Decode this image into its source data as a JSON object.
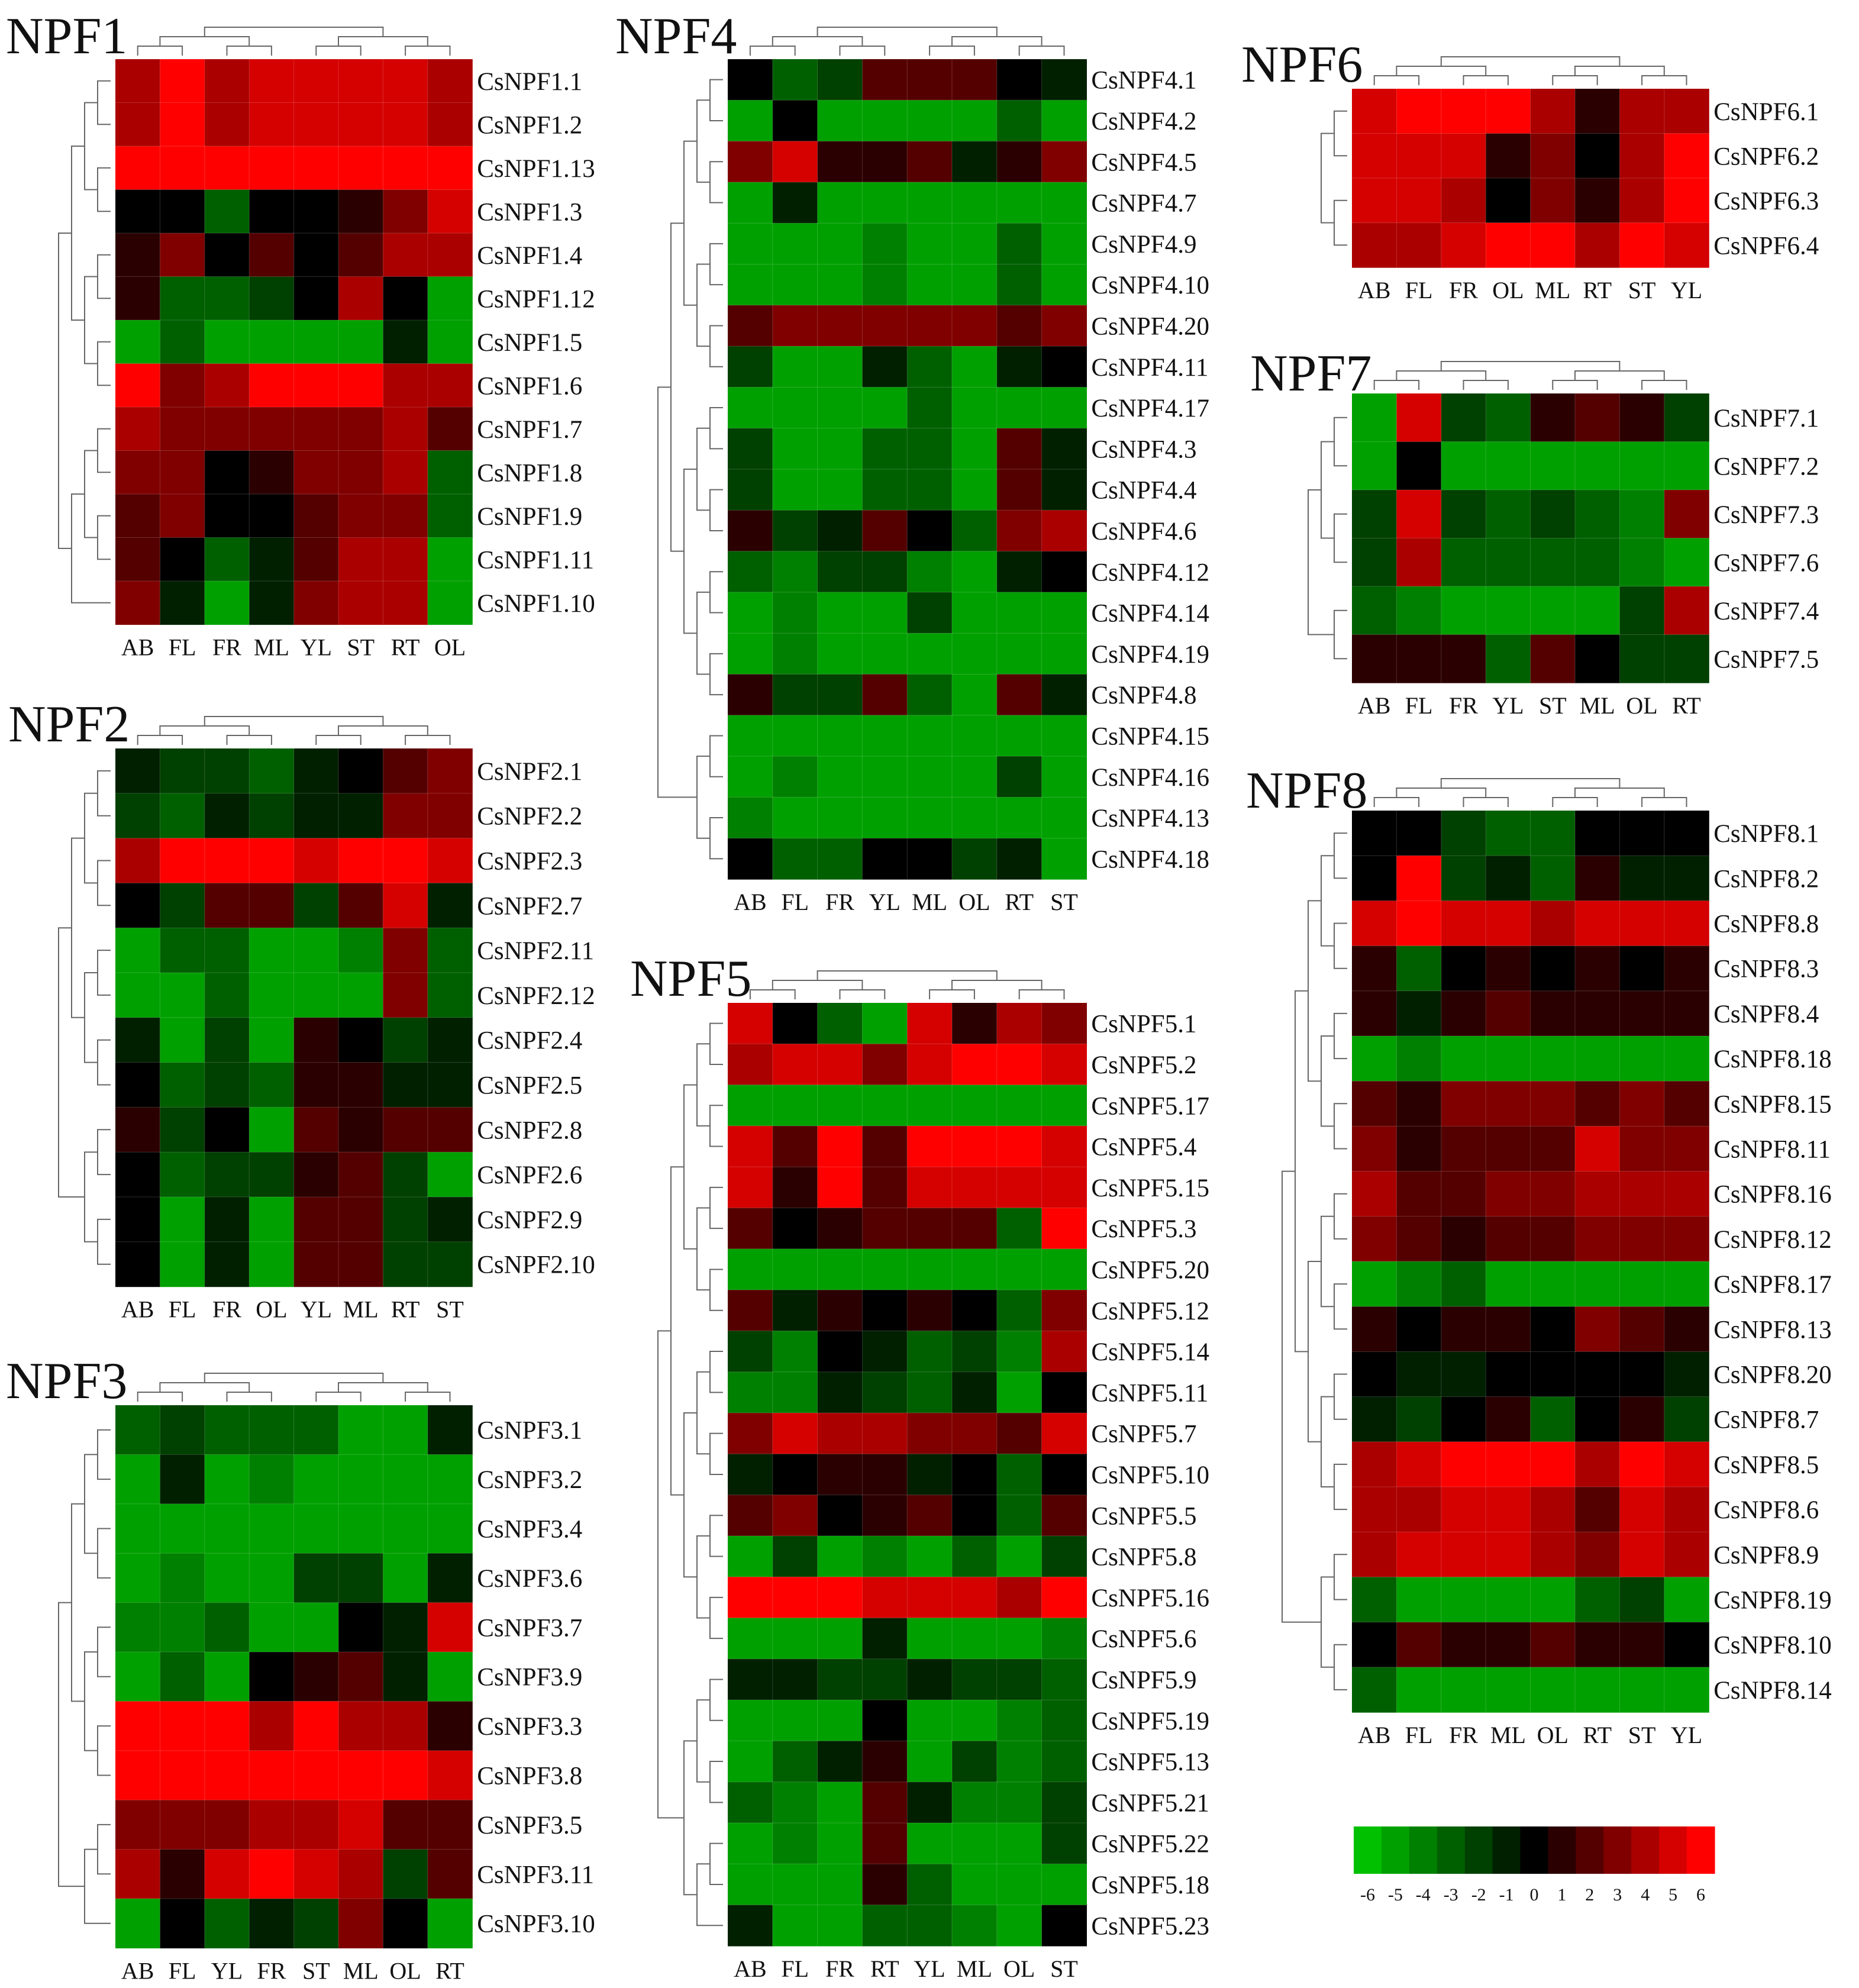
{
  "chart_data": [
    {
      "type": "heatmap",
      "title": "NPF1",
      "columns": [
        "AB",
        "FL",
        "FR",
        "ML",
        "YL",
        "ST",
        "RT",
        "OL"
      ],
      "rows": [
        "CsNPF1.1",
        "CsNPF1.2",
        "CsNPF1.13",
        "CsNPF1.3",
        "CsNPF1.4",
        "CsNPF1.12",
        "CsNPF1.5",
        "CsNPF1.6",
        "CsNPF1.7",
        "CsNPF1.8",
        "CsNPF1.9",
        "CsNPF1.11",
        "CsNPF1.10"
      ],
      "values": [
        [
          4,
          6,
          4,
          5,
          5,
          5,
          5,
          4
        ],
        [
          4,
          6,
          4,
          5,
          5,
          5,
          5,
          4
        ],
        [
          6,
          6,
          6,
          6,
          6,
          6,
          6,
          6
        ],
        [
          0,
          0,
          -3,
          0,
          0,
          1,
          3,
          5
        ],
        [
          1,
          3,
          0,
          2,
          0,
          2,
          4,
          4
        ],
        [
          1,
          -3,
          -3,
          -2,
          0,
          4,
          0,
          -5
        ],
        [
          -5,
          -3,
          -5,
          -5,
          -5,
          -5,
          -1,
          -5
        ],
        [
          6,
          3,
          4,
          6,
          6,
          6,
          4,
          4
        ],
        [
          4,
          3,
          3,
          3,
          3,
          3,
          4,
          2
        ],
        [
          3,
          3,
          0,
          1,
          3,
          3,
          4,
          -3
        ],
        [
          2,
          3,
          0,
          0,
          2,
          3,
          3,
          -3
        ],
        [
          2,
          0,
          -3,
          -1,
          2,
          4,
          4,
          -5
        ],
        [
          3,
          -1,
          -5,
          -1,
          3,
          4,
          4,
          -5
        ]
      ]
    },
    {
      "type": "heatmap",
      "title": "NPF2",
      "columns": [
        "AB",
        "FL",
        "FR",
        "OL",
        "YL",
        "ML",
        "RT",
        "ST"
      ],
      "rows": [
        "CsNPF2.1",
        "CsNPF2.2",
        "CsNPF2.3",
        "CsNPF2.7",
        "CsNPF2.11",
        "CsNPF2.12",
        "CsNPF2.4",
        "CsNPF2.5",
        "CsNPF2.8",
        "CsNPF2.6",
        "CsNPF2.9",
        "CsNPF2.10"
      ],
      "values": [
        [
          -1,
          -2,
          -2,
          -3,
          -1,
          0,
          2,
          3
        ],
        [
          -2,
          -3,
          -1,
          -2,
          -1,
          -1,
          3,
          3
        ],
        [
          4,
          6,
          6,
          6,
          5,
          6,
          6,
          5
        ],
        [
          0,
          -2,
          2,
          2,
          -2,
          2,
          5,
          -1
        ],
        [
          -5,
          -3,
          -3,
          -5,
          -5,
          -4,
          3,
          -3
        ],
        [
          -5,
          -5,
          -3,
          -5,
          -5,
          -5,
          3,
          -3
        ],
        [
          -1,
          -5,
          -2,
          -5,
          1,
          0,
          -2,
          -1
        ],
        [
          0,
          -3,
          -2,
          -3,
          1,
          1,
          -1,
          -1
        ],
        [
          1,
          -2,
          0,
          -5,
          2,
          1,
          2,
          2
        ],
        [
          0,
          -3,
          -2,
          -2,
          1,
          2,
          -2,
          -5
        ],
        [
          0,
          -5,
          -1,
          -5,
          2,
          2,
          -2,
          -1
        ],
        [
          0,
          -5,
          -1,
          -5,
          2,
          2,
          -2,
          -2
        ]
      ]
    },
    {
      "type": "heatmap",
      "title": "NPF3",
      "columns": [
        "AB",
        "FL",
        "YL",
        "FR",
        "ST",
        "ML",
        "OL",
        "RT"
      ],
      "rows": [
        "CsNPF3.1",
        "CsNPF3.2",
        "CsNPF3.4",
        "CsNPF3.6",
        "CsNPF3.7",
        "CsNPF3.9",
        "CsNPF3.3",
        "CsNPF3.8",
        "CsNPF3.5",
        "CsNPF3.11",
        "CsNPF3.10"
      ],
      "values": [
        [
          -3,
          -2,
          -3,
          -3,
          -3,
          -5,
          -5,
          -1
        ],
        [
          -5,
          -1,
          -5,
          -4,
          -5,
          -5,
          -5,
          -5
        ],
        [
          -5,
          -5,
          -5,
          -5,
          -5,
          -5,
          -5,
          -5
        ],
        [
          -5,
          -4,
          -5,
          -5,
          -2,
          -2,
          -5,
          -1
        ],
        [
          -4,
          -4,
          -3,
          -5,
          -5,
          0,
          -1,
          5
        ],
        [
          -5,
          -3,
          -5,
          0,
          1,
          2,
          -1,
          -5
        ],
        [
          6,
          6,
          6,
          4,
          6,
          4,
          4,
          1
        ],
        [
          6,
          6,
          6,
          6,
          6,
          6,
          6,
          5
        ],
        [
          3,
          3,
          3,
          4,
          4,
          5,
          2,
          2
        ],
        [
          4,
          1,
          5,
          6,
          5,
          4,
          -2,
          2
        ],
        [
          -5,
          0,
          -3,
          -1,
          -2,
          3,
          0,
          -5
        ]
      ]
    },
    {
      "type": "heatmap",
      "title": "NPF4",
      "columns": [
        "AB",
        "FL",
        "FR",
        "YL",
        "ML",
        "OL",
        "RT",
        "ST"
      ],
      "rows": [
        "CsNPF4.1",
        "CsNPF4.2",
        "CsNPF4.5",
        "CsNPF4.7",
        "CsNPF4.9",
        "CsNPF4.10",
        "CsNPF4.20",
        "CsNPF4.11",
        "CsNPF4.17",
        "CsNPF4.3",
        "CsNPF4.4",
        "CsNPF4.6",
        "CsNPF4.12",
        "CsNPF4.14",
        "CsNPF4.19",
        "CsNPF4.8",
        "CsNPF4.15",
        "CsNPF4.16",
        "CsNPF4.13",
        "CsNPF4.18"
      ],
      "values": [
        [
          0,
          -3,
          -2,
          2,
          2,
          2,
          0,
          -1
        ],
        [
          -5,
          0,
          -5,
          -5,
          -5,
          -5,
          -3,
          -5
        ],
        [
          3,
          5,
          1,
          1,
          2,
          -1,
          1,
          3
        ],
        [
          -5,
          -1,
          -5,
          -5,
          -5,
          -5,
          -5,
          -5
        ],
        [
          -5,
          -5,
          -5,
          -4,
          -5,
          -5,
          -3,
          -5
        ],
        [
          -5,
          -5,
          -5,
          -4,
          -5,
          -5,
          -3,
          -5
        ],
        [
          2,
          3,
          3,
          3,
          3,
          3,
          2,
          3
        ],
        [
          -2,
          -5,
          -5,
          -1,
          -3,
          -5,
          -1,
          0
        ],
        [
          -5,
          -5,
          -5,
          -5,
          -3,
          -5,
          -5,
          -5
        ],
        [
          -2,
          -5,
          -5,
          -3,
          -3,
          -5,
          2,
          -1
        ],
        [
          -2,
          -5,
          -5,
          -3,
          -3,
          -5,
          2,
          -1
        ],
        [
          1,
          -2,
          -1,
          2,
          0,
          -3,
          3,
          4
        ],
        [
          -3,
          -4,
          -2,
          -2,
          -4,
          -5,
          -1,
          0
        ],
        [
          -5,
          -4,
          -5,
          -5,
          -2,
          -5,
          -5,
          -5
        ],
        [
          -5,
          -4,
          -5,
          -5,
          -5,
          -5,
          -5,
          -5
        ],
        [
          1,
          -2,
          -2,
          2,
          -3,
          -5,
          2,
          -1
        ],
        [
          -5,
          -5,
          -5,
          -5,
          -5,
          -5,
          -5,
          -5
        ],
        [
          -5,
          -4,
          -5,
          -5,
          -5,
          -5,
          -2,
          -5
        ],
        [
          -4,
          -5,
          -5,
          -5,
          -5,
          -5,
          -5,
          -5
        ],
        [
          0,
          -3,
          -3,
          0,
          0,
          -2,
          -1,
          -5
        ]
      ]
    },
    {
      "type": "heatmap",
      "title": "NPF5",
      "columns": [
        "AB",
        "FL",
        "FR",
        "RT",
        "YL",
        "ML",
        "OL",
        "ST"
      ],
      "rows": [
        "CsNPF5.1",
        "CsNPF5.2",
        "CsNPF5.17",
        "CsNPF5.4",
        "CsNPF5.15",
        "CsNPF5.3",
        "CsNPF5.20",
        "CsNPF5.12",
        "CsNPF5.14",
        "CsNPF5.11",
        "CsNPF5.7",
        "CsNPF5.10",
        "CsNPF5.5",
        "CsNPF5.8",
        "CsNPF5.16",
        "CsNPF5.6",
        "CsNPF5.9",
        "CsNPF5.19",
        "CsNPF5.13",
        "CsNPF5.21",
        "CsNPF5.22",
        "CsNPF5.18",
        "CsNPF5.23"
      ],
      "values": [
        [
          5,
          0,
          -3,
          -5,
          5,
          1,
          4,
          3
        ],
        [
          4,
          5,
          5,
          3,
          5,
          6,
          6,
          5
        ],
        [
          -5,
          -5,
          -5,
          -5,
          -5,
          -5,
          -5,
          -5
        ],
        [
          5,
          2,
          6,
          2,
          6,
          6,
          6,
          5
        ],
        [
          5,
          1,
          6,
          2,
          5,
          5,
          5,
          5
        ],
        [
          2,
          0,
          1,
          2,
          2,
          2,
          -3,
          6
        ],
        [
          -5,
          -5,
          -5,
          -5,
          -5,
          -5,
          -5,
          -5
        ],
        [
          2,
          -1,
          1,
          0,
          1,
          0,
          -3,
          3
        ],
        [
          -2,
          -4,
          0,
          -1,
          -3,
          -2,
          -4,
          4
        ],
        [
          -4,
          -4,
          -1,
          -2,
          -3,
          -1,
          -5,
          0
        ],
        [
          3,
          5,
          4,
          4,
          3,
          3,
          2,
          5
        ],
        [
          -1,
          0,
          1,
          1,
          -1,
          0,
          -3,
          0
        ],
        [
          2,
          3,
          0,
          1,
          2,
          0,
          -3,
          2
        ],
        [
          -5,
          -2,
          -5,
          -4,
          -5,
          -3,
          -5,
          -2
        ],
        [
          6,
          6,
          6,
          5,
          5,
          5,
          4,
          6
        ],
        [
          -5,
          -5,
          -5,
          -1,
          -5,
          -5,
          -5,
          -4
        ],
        [
          -1,
          -1,
          -2,
          -2,
          -1,
          -2,
          -2,
          -3
        ],
        [
          -5,
          -5,
          -5,
          0,
          -5,
          -5,
          -4,
          -3
        ],
        [
          -5,
          -3,
          -1,
          1,
          -5,
          -2,
          -4,
          -3
        ],
        [
          -3,
          -4,
          -5,
          2,
          -1,
          -4,
          -4,
          -2
        ],
        [
          -5,
          -4,
          -5,
          2,
          -5,
          -5,
          -5,
          -2
        ],
        [
          -5,
          -5,
          -5,
          1,
          -3,
          -5,
          -5,
          -5
        ],
        [
          -1,
          -5,
          -5,
          -3,
          -3,
          -4,
          -5,
          0
        ]
      ]
    },
    {
      "type": "heatmap",
      "title": "NPF6",
      "columns": [
        "AB",
        "FL",
        "FR",
        "OL",
        "ML",
        "RT",
        "ST",
        "YL"
      ],
      "rows": [
        "CsNPF6.1",
        "CsNPF6.2",
        "CsNPF6.3",
        "CsNPF6.4"
      ],
      "values": [
        [
          5,
          6,
          6,
          6,
          4,
          1,
          4,
          4
        ],
        [
          5,
          5,
          5,
          1,
          3,
          0,
          4,
          6
        ],
        [
          5,
          5,
          4,
          0,
          3,
          1,
          4,
          6
        ],
        [
          4,
          4,
          5,
          6,
          6,
          4,
          6,
          5
        ]
      ]
    },
    {
      "type": "heatmap",
      "title": "NPF7",
      "columns": [
        "AB",
        "FL",
        "FR",
        "YL",
        "ST",
        "ML",
        "OL",
        "RT"
      ],
      "rows": [
        "CsNPF7.1",
        "CsNPF7.2",
        "CsNPF7.3",
        "CsNPF7.6",
        "CsNPF7.4",
        "CsNPF7.5"
      ],
      "values": [
        [
          -5,
          5,
          -2,
          -3,
          1,
          2,
          1,
          -2
        ],
        [
          -5,
          0,
          -5,
          -5,
          -5,
          -5,
          -5,
          -5
        ],
        [
          -2,
          5,
          -2,
          -3,
          -2,
          -3,
          -4,
          3
        ],
        [
          -2,
          4,
          -3,
          -3,
          -3,
          -3,
          -4,
          -5
        ],
        [
          -3,
          -4,
          -5,
          -5,
          -5,
          -5,
          -2,
          4
        ],
        [
          1,
          1,
          1,
          -3,
          2,
          0,
          -2,
          -2
        ]
      ]
    },
    {
      "type": "heatmap",
      "title": "NPF8",
      "columns": [
        "AB",
        "FL",
        "FR",
        "ML",
        "OL",
        "RT",
        "ST",
        "YL"
      ],
      "rows": [
        "CsNPF8.1",
        "CsNPF8.2",
        "CsNPF8.8",
        "CsNPF8.3",
        "CsNPF8.4",
        "CsNPF8.18",
        "CsNPF8.15",
        "CsNPF8.11",
        "CsNPF8.16",
        "CsNPF8.12",
        "CsNPF8.17",
        "CsNPF8.13",
        "CsNPF8.20",
        "CsNPF8.7",
        "CsNPF8.5",
        "CsNPF8.6",
        "CsNPF8.9",
        "CsNPF8.19",
        "CsNPF8.10",
        "CsNPF8.14"
      ],
      "values": [
        [
          0,
          0,
          -2,
          -3,
          -3,
          0,
          0,
          0
        ],
        [
          0,
          6,
          -2,
          -1,
          -3,
          1,
          -1,
          -1
        ],
        [
          5,
          6,
          5,
          5,
          4,
          5,
          5,
          5
        ],
        [
          1,
          -3,
          0,
          1,
          0,
          1,
          0,
          1
        ],
        [
          1,
          -1,
          1,
          2,
          1,
          1,
          1,
          1
        ],
        [
          -5,
          -4,
          -5,
          -5,
          -5,
          -5,
          -5,
          -5
        ],
        [
          2,
          1,
          3,
          3,
          3,
          2,
          3,
          2
        ],
        [
          3,
          1,
          2,
          2,
          2,
          5,
          3,
          3
        ],
        [
          4,
          2,
          2,
          3,
          3,
          4,
          4,
          4
        ],
        [
          3,
          2,
          1,
          2,
          2,
          3,
          3,
          3
        ],
        [
          -5,
          -4,
          -3,
          -5,
          -5,
          -5,
          -5,
          -5
        ],
        [
          1,
          0,
          1,
          1,
          0,
          3,
          2,
          1
        ],
        [
          0,
          -1,
          -1,
          0,
          0,
          0,
          0,
          -1
        ],
        [
          -1,
          -2,
          0,
          1,
          -3,
          0,
          1,
          -2
        ],
        [
          4,
          5,
          6,
          6,
          6,
          4,
          6,
          5
        ],
        [
          4,
          4,
          5,
          5,
          4,
          2,
          5,
          4
        ],
        [
          4,
          5,
          5,
          5,
          4,
          3,
          5,
          4
        ],
        [
          -3,
          -5,
          -5,
          -5,
          -5,
          -3,
          -2,
          -5
        ],
        [
          0,
          2,
          1,
          1,
          2,
          1,
          1,
          0
        ],
        [
          -3,
          -5,
          -5,
          -5,
          -5,
          -5,
          -5,
          -5
        ]
      ]
    }
  ],
  "color_scale": {
    "ticks": [
      "-6",
      "-5",
      "-4",
      "-3",
      "-2",
      "-1",
      "0",
      "1",
      "2",
      "3",
      "4",
      "5",
      "6"
    ],
    "low_color": "#00c000",
    "mid_color": "#000000",
    "high_color": "#ff0000",
    "min": -6,
    "max": 6
  }
}
